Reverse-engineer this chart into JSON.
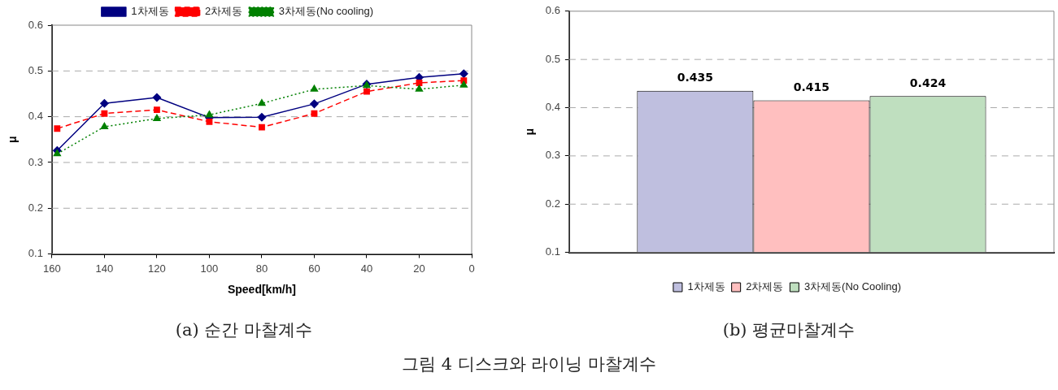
{
  "chart_data": [
    {
      "type": "line",
      "xlabel": "Speed[km/h]",
      "ylabel": "μ",
      "x": [
        158,
        140,
        120,
        100,
        80,
        60,
        40,
        20,
        3
      ],
      "xlim": [
        160,
        0
      ],
      "xticks": [
        160,
        140,
        120,
        100,
        80,
        60,
        40,
        20,
        0
      ],
      "ylim": [
        0.1,
        0.6
      ],
      "yticks": [
        0.1,
        0.2,
        0.3,
        0.4,
        0.5,
        0.6
      ],
      "grid": "y",
      "legend": "top",
      "series": [
        {
          "name": "1차제동",
          "color": "#000080",
          "marker": "diamond",
          "line_style": "solid",
          "values": [
            0.326,
            0.429,
            0.442,
            0.398,
            0.399,
            0.428,
            0.471,
            0.486,
            0.494
          ]
        },
        {
          "name": "2차제동",
          "color": "#ff0000",
          "marker": "square",
          "line_style": "dashed",
          "values": [
            0.374,
            0.407,
            0.415,
            0.389,
            0.377,
            0.407,
            0.455,
            0.474,
            0.479
          ]
        },
        {
          "name": "3차제동(No cooling)",
          "color": "#008000",
          "marker": "triangle",
          "line_style": "dotted",
          "values": [
            0.319,
            0.378,
            0.396,
            0.404,
            0.429,
            0.46,
            0.468,
            0.46,
            0.469
          ]
        }
      ],
      "annotations": [
        "(a) 순간 마찰계수",
        "그림 4 디스크와 라이닝 마찰계수"
      ]
    },
    {
      "type": "bar",
      "ylabel": "μ",
      "categories": [
        null
      ],
      "ylim": [
        0.1,
        0.6
      ],
      "yticks": [
        0.1,
        0.2,
        0.3,
        0.4,
        0.5,
        0.6
      ],
      "grid": "y",
      "legend": "bottom",
      "data_labels": true,
      "series": [
        {
          "name": "1차제동",
          "color": "#bfbfdf",
          "values": [
            0.435
          ]
        },
        {
          "name": "2차제동",
          "color": "#ffbfbf",
          "values": [
            0.415
          ]
        },
        {
          "name": "3차제동(No Cooling)",
          "color": "#bfdfbf",
          "values": [
            0.424
          ]
        }
      ],
      "annotations": [
        "(b) 평균마찰계수"
      ]
    }
  ]
}
